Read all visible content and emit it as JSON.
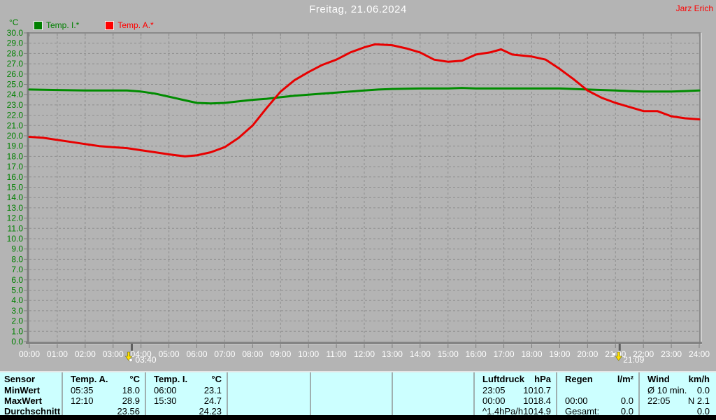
{
  "header": {
    "title": "Freitag, 21.06.2024",
    "author": "Jarz Erich"
  },
  "chart": {
    "unit_label": "°C",
    "legend": [
      {
        "id": "temp_i",
        "label": "Temp. I.*",
        "color": "#008000"
      },
      {
        "id": "temp_a",
        "label": "Temp. A.*",
        "color": "#ff0000"
      }
    ]
  },
  "chart_data": {
    "type": "line",
    "title": "Freitag, 21.06.2024",
    "ylabel": "°C",
    "ylim": [
      0.0,
      30.0
    ],
    "y_tick_step": 1.0,
    "xlim_hours": [
      0,
      24
    ],
    "x_tick_labels": [
      "00:00",
      "01:00",
      "02:00",
      "03:00",
      "04:00",
      "05:00",
      "06:00",
      "07:00",
      "08:00",
      "09:00",
      "10:00",
      "11:00",
      "12:00",
      "13:00",
      "14:00",
      "15:00",
      "16:00",
      "17:00",
      "18:00",
      "19:00",
      "20:00",
      "21:00",
      "22:00",
      "23:00",
      "24:00"
    ],
    "grid": true,
    "legend_position": "top-left",
    "series": [
      {
        "name": "Temp. I.*",
        "color": "#008c00",
        "points": [
          [
            0,
            24.5
          ],
          [
            1,
            24.45
          ],
          [
            2,
            24.4
          ],
          [
            3,
            24.4
          ],
          [
            3.5,
            24.4
          ],
          [
            4,
            24.3
          ],
          [
            4.5,
            24.1
          ],
          [
            5,
            23.8
          ],
          [
            5.5,
            23.5
          ],
          [
            6,
            23.2
          ],
          [
            6.5,
            23.15
          ],
          [
            7,
            23.2
          ],
          [
            7.5,
            23.35
          ],
          [
            8,
            23.5
          ],
          [
            8.5,
            23.6
          ],
          [
            9,
            23.75
          ],
          [
            9.5,
            23.9
          ],
          [
            10,
            24.0
          ],
          [
            10.5,
            24.1
          ],
          [
            11,
            24.2
          ],
          [
            11.5,
            24.3
          ],
          [
            12,
            24.4
          ],
          [
            12.5,
            24.5
          ],
          [
            13,
            24.55
          ],
          [
            14,
            24.6
          ],
          [
            15,
            24.6
          ],
          [
            15.5,
            24.65
          ],
          [
            16,
            24.6
          ],
          [
            17,
            24.6
          ],
          [
            18,
            24.6
          ],
          [
            19,
            24.6
          ],
          [
            20,
            24.5
          ],
          [
            21,
            24.4
          ],
          [
            21.5,
            24.35
          ],
          [
            22,
            24.3
          ],
          [
            23,
            24.3
          ],
          [
            23.5,
            24.35
          ],
          [
            24,
            24.4
          ]
        ]
      },
      {
        "name": "Temp. A.*",
        "color": "#e80000",
        "points": [
          [
            0,
            19.9
          ],
          [
            0.5,
            19.8
          ],
          [
            1,
            19.6
          ],
          [
            1.5,
            19.4
          ],
          [
            2,
            19.2
          ],
          [
            2.5,
            19.0
          ],
          [
            3,
            18.9
          ],
          [
            3.5,
            18.8
          ],
          [
            4,
            18.6
          ],
          [
            4.5,
            18.4
          ],
          [
            5,
            18.2
          ],
          [
            5.58,
            18.0
          ],
          [
            6,
            18.1
          ],
          [
            6.5,
            18.4
          ],
          [
            7,
            18.9
          ],
          [
            7.5,
            19.8
          ],
          [
            8,
            21.0
          ],
          [
            8.5,
            22.7
          ],
          [
            9,
            24.3
          ],
          [
            9.5,
            25.4
          ],
          [
            10,
            26.2
          ],
          [
            10.5,
            26.9
          ],
          [
            11,
            27.4
          ],
          [
            11.5,
            28.1
          ],
          [
            12,
            28.6
          ],
          [
            12.4,
            28.9
          ],
          [
            13,
            28.8
          ],
          [
            13.5,
            28.5
          ],
          [
            14,
            28.1
          ],
          [
            14.5,
            27.4
          ],
          [
            15,
            27.2
          ],
          [
            15.5,
            27.3
          ],
          [
            16,
            27.9
          ],
          [
            16.5,
            28.1
          ],
          [
            16.9,
            28.4
          ],
          [
            17.3,
            27.9
          ],
          [
            18,
            27.7
          ],
          [
            18.5,
            27.4
          ],
          [
            19,
            26.5
          ],
          [
            19.5,
            25.5
          ],
          [
            20,
            24.4
          ],
          [
            20.5,
            23.7
          ],
          [
            21,
            23.2
          ],
          [
            21.5,
            22.8
          ],
          [
            22,
            22.4
          ],
          [
            22.5,
            22.4
          ],
          [
            23,
            21.9
          ],
          [
            23.5,
            21.7
          ],
          [
            24,
            21.6
          ]
        ]
      }
    ],
    "sun_markers": [
      {
        "type": "sunrise",
        "time": "03:40",
        "hour": 3.67
      },
      {
        "type": "sunset",
        "time": "21:09",
        "hour": 21.15
      }
    ]
  },
  "table": {
    "row_labels": [
      "Sensor",
      "MinWert",
      "MaxWert",
      "Durchschnitt"
    ],
    "groups": [
      {
        "id": "temp-a",
        "header": [
          "Temp. A.",
          "°C"
        ],
        "rows": [
          [
            "05:35",
            "18.0"
          ],
          [
            "12:10",
            "28.9"
          ],
          [
            "",
            "23.56"
          ]
        ]
      },
      {
        "id": "temp-i",
        "header": [
          "Temp. I.",
          "°C"
        ],
        "rows": [
          [
            "06:00",
            "23.1"
          ],
          [
            "15:30",
            "24.7"
          ],
          [
            "",
            "24.23"
          ]
        ]
      },
      {
        "id": "empty-1",
        "header": [
          "",
          ""
        ],
        "rows": [
          [
            "",
            ""
          ],
          [
            "",
            ""
          ],
          [
            "",
            ""
          ]
        ]
      },
      {
        "id": "empty-2",
        "header": [
          "",
          ""
        ],
        "rows": [
          [
            "",
            ""
          ],
          [
            "",
            ""
          ],
          [
            "",
            ""
          ]
        ]
      },
      {
        "id": "empty-3",
        "header": [
          "",
          ""
        ],
        "rows": [
          [
            "",
            ""
          ],
          [
            "",
            ""
          ],
          [
            "",
            ""
          ]
        ]
      },
      {
        "id": "luftdruck",
        "header": [
          "Luftdruck",
          "hPa"
        ],
        "rows": [
          [
            "23:05",
            "1010.7"
          ],
          [
            "00:00",
            "1018.4"
          ],
          [
            "^1.4hPa/h",
            "1014.9"
          ]
        ]
      },
      {
        "id": "regen",
        "header": [
          "Regen",
          "l/m²"
        ],
        "rows": [
          [
            "",
            ""
          ],
          [
            "00:00",
            "0.0"
          ],
          [
            "Gesamt:",
            "0.0"
          ]
        ]
      },
      {
        "id": "wind",
        "header": [
          "Wind",
          "km/h"
        ],
        "rows": [
          [
            "Ø 10 min.",
            "0.0"
          ],
          [
            "22:05",
            "N 2.1"
          ],
          [
            "",
            "0.0"
          ]
        ]
      }
    ]
  },
  "colors": {
    "background": "#b4b4b4",
    "grid": "#8e8e8e",
    "axis": "#7e7e7e",
    "title_text": "#ffffff",
    "y_label_text": "#008000",
    "x_label_text": "#ffffff",
    "author_text": "#ff0000",
    "table_background": "#ccffff",
    "marker_text": "#ffffff"
  }
}
